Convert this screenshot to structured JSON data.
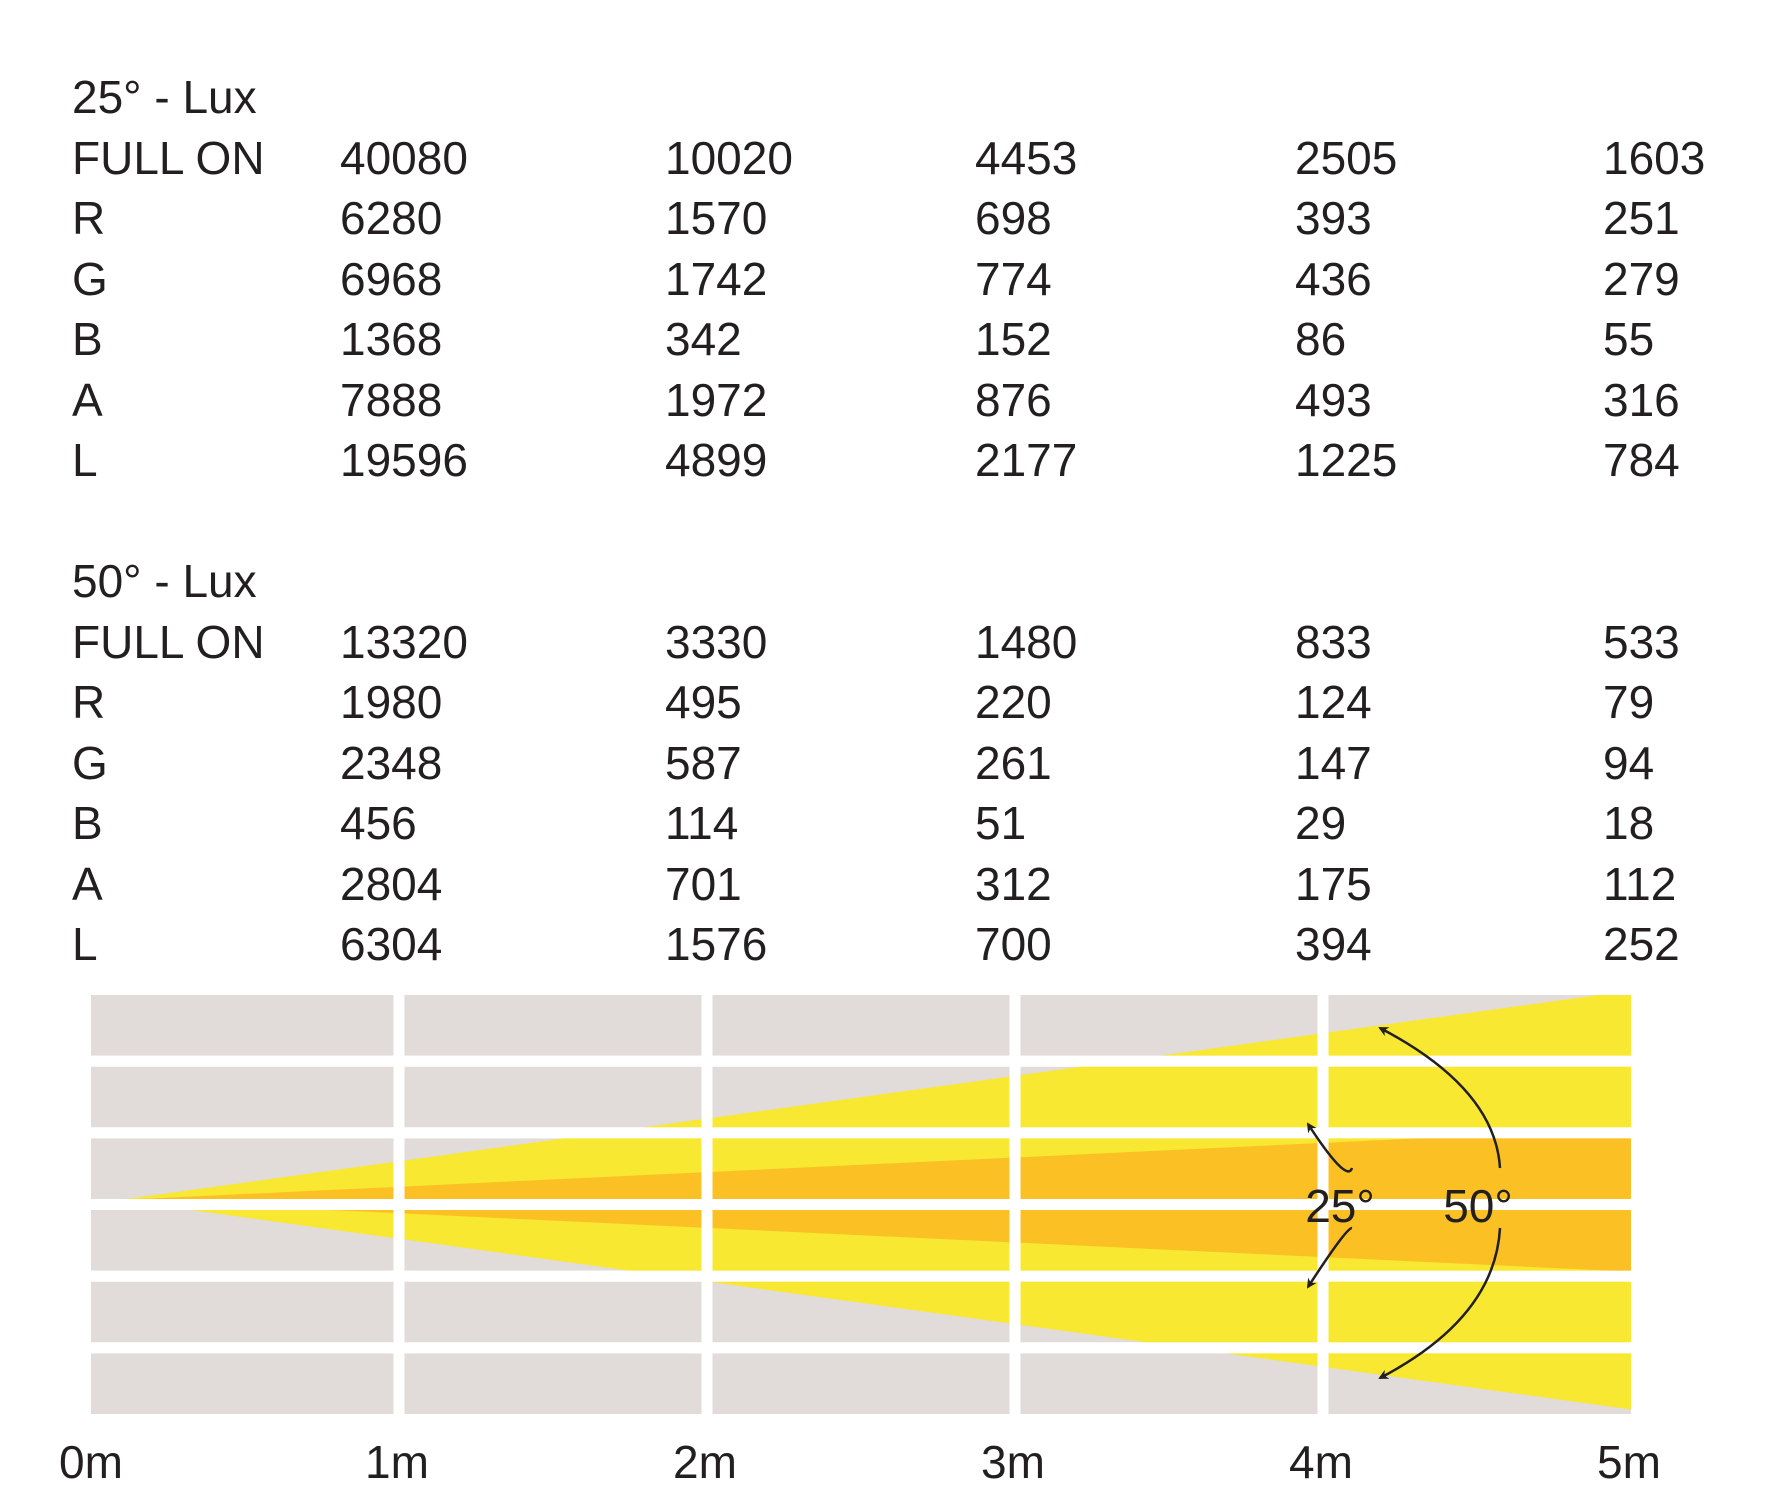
{
  "tables": [
    {
      "title": "25° - Lux",
      "rows": [
        {
          "label": "FULL ON",
          "values": [
            "40080",
            "10020",
            "4453",
            "2505",
            "1603"
          ]
        },
        {
          "label": "R",
          "values": [
            "6280",
            "1570",
            "698",
            "393",
            "251"
          ]
        },
        {
          "label": "G",
          "values": [
            "6968",
            "1742",
            "774",
            "436",
            "279"
          ]
        },
        {
          "label": "B",
          "values": [
            "1368",
            "342",
            "152",
            "86",
            "55"
          ]
        },
        {
          "label": "A",
          "values": [
            "7888",
            "1972",
            "876",
            "493",
            "316"
          ]
        },
        {
          "label": "L",
          "values": [
            "19596",
            "4899",
            "2177",
            "1225",
            "784"
          ]
        }
      ]
    },
    {
      "title": "50° - Lux",
      "rows": [
        {
          "label": "FULL ON",
          "values": [
            "13320",
            "3330",
            "1480",
            "833",
            "533"
          ]
        },
        {
          "label": "R",
          "values": [
            "1980",
            "495",
            "220",
            "124",
            "79"
          ]
        },
        {
          "label": "G",
          "values": [
            "2348",
            "587",
            "261",
            "147",
            "94"
          ]
        },
        {
          "label": "B",
          "values": [
            "456",
            "114",
            "51",
            "29",
            "18"
          ]
        },
        {
          "label": "A",
          "values": [
            "2804",
            "701",
            "312",
            "175",
            "112"
          ]
        },
        {
          "label": "L",
          "values": [
            "6304",
            "1576",
            "700",
            "394",
            "252"
          ]
        }
      ]
    }
  ],
  "chart_data": {
    "type": "table",
    "distance_axis": {
      "unit": "m",
      "range": [
        0,
        5
      ],
      "tick_labels": [
        "0m",
        "1m",
        "2m",
        "3m",
        "4m",
        "5m"
      ]
    },
    "beams": [
      {
        "angle_label": "25°",
        "angle_deg": 25,
        "color": "#fbc124"
      },
      {
        "angle_label": "50°",
        "angle_deg": 50,
        "color": "#f8e832"
      }
    ],
    "grid_color": "#e1dcd9",
    "background": "#ffffff"
  }
}
